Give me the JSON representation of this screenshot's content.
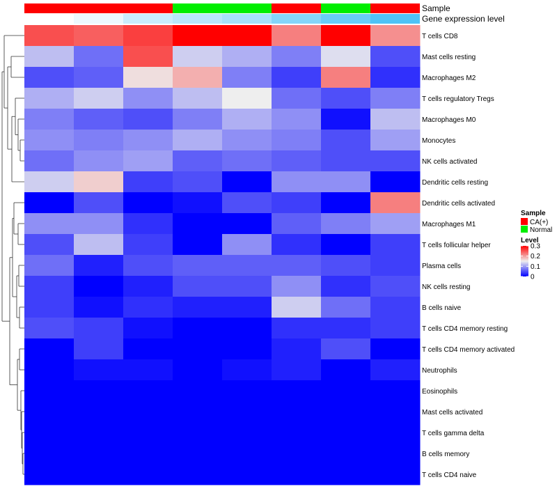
{
  "chart_data": {
    "type": "heatmap",
    "annotation_titles": [
      "Sample",
      "Gene expression level"
    ],
    "sample_annotation": [
      "CA(+)",
      "CA(+)",
      "CA(+)",
      "Normal",
      "Normal",
      "CA(+)",
      "Normal",
      "CA(+)"
    ],
    "gene_expression_level": [
      0.0,
      0.1,
      0.3,
      0.4,
      0.5,
      0.7,
      0.85,
      1.0
    ],
    "rows": [
      "T cells CD8",
      "Mast cells resting",
      "Macrophages M2",
      "T cells regulatory  Tregs",
      "Macrophages M0",
      "Monocytes",
      "NK cells activated",
      "Dendritic cells resting",
      "Dendritic cells activated",
      "Macrophages M1",
      "T cells follicular helper",
      "Plasma cells",
      "NK cells resting",
      "B cells naive",
      "T cells CD4 memory resting",
      "T cells CD4 memory activated",
      "Neutrophils",
      "Eosinophils",
      "Mast cells activated",
      "T cells gamma delta",
      "B cells memory",
      "T cells CD4 naive"
    ],
    "values": [
      [
        0.25,
        0.24,
        0.26,
        0.3,
        0.3,
        0.22,
        0.3,
        0.21
      ],
      [
        0.12,
        0.07,
        0.25,
        0.13,
        0.11,
        0.08,
        0.14,
        0.05
      ],
      [
        0.05,
        0.06,
        0.16,
        0.19,
        0.08,
        0.04,
        0.22,
        0.03
      ],
      [
        0.11,
        0.13,
        0.09,
        0.12,
        0.15,
        0.07,
        0.05,
        0.08
      ],
      [
        0.08,
        0.06,
        0.05,
        0.08,
        0.11,
        0.09,
        0.01,
        0.12
      ],
      [
        0.09,
        0.08,
        0.09,
        0.11,
        0.09,
        0.08,
        0.05,
        0.1
      ],
      [
        0.07,
        0.09,
        0.1,
        0.06,
        0.07,
        0.06,
        0.05,
        0.05
      ],
      [
        0.13,
        0.17,
        0.04,
        0.05,
        0.0,
        0.09,
        0.09,
        0.0
      ],
      [
        0.0,
        0.05,
        0.0,
        0.01,
        0.05,
        0.04,
        0.0,
        0.22
      ],
      [
        0.09,
        0.09,
        0.03,
        0.0,
        0.0,
        0.06,
        0.08,
        0.1
      ],
      [
        0.05,
        0.12,
        0.04,
        0.0,
        0.09,
        0.03,
        0.0,
        0.04
      ],
      [
        0.07,
        0.02,
        0.05,
        0.06,
        0.06,
        0.06,
        0.05,
        0.04
      ],
      [
        0.04,
        0.0,
        0.02,
        0.05,
        0.05,
        0.09,
        0.03,
        0.05
      ],
      [
        0.04,
        0.01,
        0.03,
        0.02,
        0.02,
        0.13,
        0.07,
        0.04
      ],
      [
        0.05,
        0.04,
        0.01,
        0.0,
        0.0,
        0.03,
        0.03,
        0.04
      ],
      [
        0.0,
        0.04,
        0.0,
        0.0,
        0.0,
        0.02,
        0.05,
        0.0
      ],
      [
        0.0,
        0.01,
        0.01,
        0.0,
        0.01,
        0.02,
        0.0,
        0.02
      ],
      [
        0.0,
        0.0,
        0.0,
        0.0,
        0.0,
        0.0,
        0.0,
        0.0
      ],
      [
        0.0,
        0.0,
        0.0,
        0.0,
        0.0,
        0.0,
        0.0,
        0.0
      ],
      [
        0.0,
        0.0,
        0.0,
        0.0,
        0.0,
        0.0,
        0.0,
        0.0
      ],
      [
        0.0,
        0.0,
        0.0,
        0.0,
        0.0,
        0.0,
        0.0,
        0.0
      ],
      [
        0.0,
        0.0,
        0.0,
        0.0,
        0.0,
        0.0,
        0.0,
        0.0
      ]
    ],
    "color_scale": {
      "min": 0,
      "mid": 0.15,
      "max": 0.3,
      "low_color": "#0000ff",
      "mid_color": "#eeeeee",
      "high_color": "#ff0000"
    },
    "legend": {
      "sample_title": "Sample",
      "sample_entries": [
        {
          "label": "CA(+)",
          "color": "#ff0000"
        },
        {
          "label": "Normal",
          "color": "#00ee00"
        }
      ],
      "level_title": "Level",
      "level_ticks": [
        "0.3",
        "0.2",
        "0.1",
        "0"
      ],
      "level_tick_values": [
        0.3,
        0.2,
        0.1,
        0
      ],
      "placement": "right"
    },
    "annotation_colors": {
      "CA(+)": "#ff0000",
      "Normal": "#00ee00"
    },
    "gene_expression_colors": {
      "low": "#ffffff",
      "high": "#4fc3f7"
    },
    "row_dendrogram": true
  }
}
